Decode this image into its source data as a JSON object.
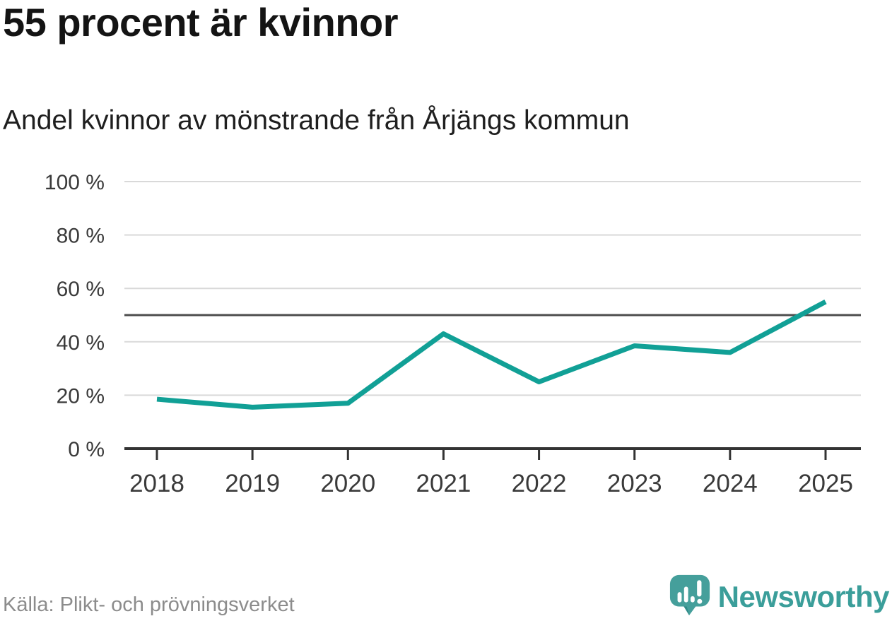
{
  "chart_data": {
    "type": "line",
    "title": "55 procent är kvinnor",
    "subtitle": "Andel kvinnor av mönstrande från Årjängs kommun",
    "categories": [
      "2018",
      "2019",
      "2020",
      "2021",
      "2022",
      "2023",
      "2024",
      "2025"
    ],
    "series": [
      {
        "name": "Andel kvinnor av mönstrande",
        "values": [
          18.5,
          15.5,
          17,
          43,
          25,
          38.5,
          36,
          55
        ]
      }
    ],
    "unit": "%",
    "ylim": [
      0,
      100
    ],
    "yticks": [
      0,
      20,
      40,
      60,
      80,
      100
    ],
    "ytick_label_suffix": " %",
    "reference_line_y": 50,
    "grid": "horizontal-only",
    "legend": "none",
    "colors": {
      "line": "#11a096",
      "grid": "#d9d9d9",
      "reference_line": "#4d4d4d",
      "axis": "#333333",
      "tick_text": "#3a3a3a"
    }
  },
  "footer": {
    "source": "Källa: Plikt- och prövningsverket",
    "brand": "Newsworthy",
    "logo_icon": "newsworthy-speech-bubble-bar-chart-icon",
    "brand_color": "#3b9e9a",
    "logo_fill": "#459f9b"
  }
}
